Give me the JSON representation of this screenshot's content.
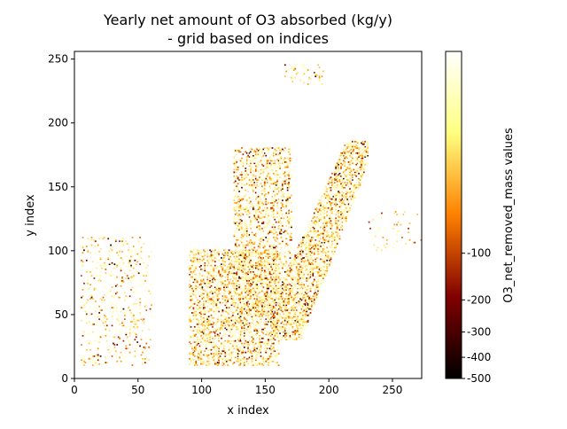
{
  "chart_data": {
    "type": "heatmap",
    "title": "Yearly net amount of O3 absorbed (kg/y)",
    "subtitle": "- grid based on indices",
    "xlabel": "x index",
    "ylabel": "y index",
    "xlim": [
      0,
      273
    ],
    "ylim": [
      0,
      256
    ],
    "x_ticks": [
      0,
      50,
      100,
      150,
      200,
      250
    ],
    "y_ticks": [
      0,
      50,
      100,
      150,
      200,
      250
    ],
    "x_tick_labels": [
      "0",
      "50",
      "100",
      "150",
      "200",
      "250"
    ],
    "y_tick_labels": [
      "0",
      "50",
      "100",
      "150",
      "200",
      "250"
    ],
    "colormap": "afmhot",
    "colorbar": {
      "label": "O3_net_removed_mass values",
      "vmin": -500,
      "vmax": 0,
      "ticks": [
        -500,
        -400,
        -300,
        -200,
        -100
      ],
      "tick_labels": [
        "-500",
        "-400",
        "-300",
        "-200",
        "-100"
      ]
    },
    "grid": false,
    "regions": [
      {
        "name": "southwest cluster",
        "x": [
          90,
          160
        ],
        "y": [
          10,
          100
        ],
        "intensity": 0.45
      },
      {
        "name": "west scatter",
        "x": [
          5,
          60
        ],
        "y": [
          10,
          110
        ],
        "intensity": 0.12
      },
      {
        "name": "central cluster",
        "x": [
          125,
          170
        ],
        "y": [
          50,
          180
        ],
        "intensity": 0.35
      },
      {
        "name": "diagonal band",
        "x": [
          155,
          230
        ],
        "y": [
          30,
          185
        ],
        "intensity": 0.55
      },
      {
        "name": "northeast patch",
        "x": [
          165,
          195
        ],
        "y": [
          230,
          245
        ],
        "intensity": 0.12
      },
      {
        "name": "east scatter",
        "x": [
          230,
          273
        ],
        "y": [
          100,
          130
        ],
        "intensity": 0.05
      }
    ]
  }
}
